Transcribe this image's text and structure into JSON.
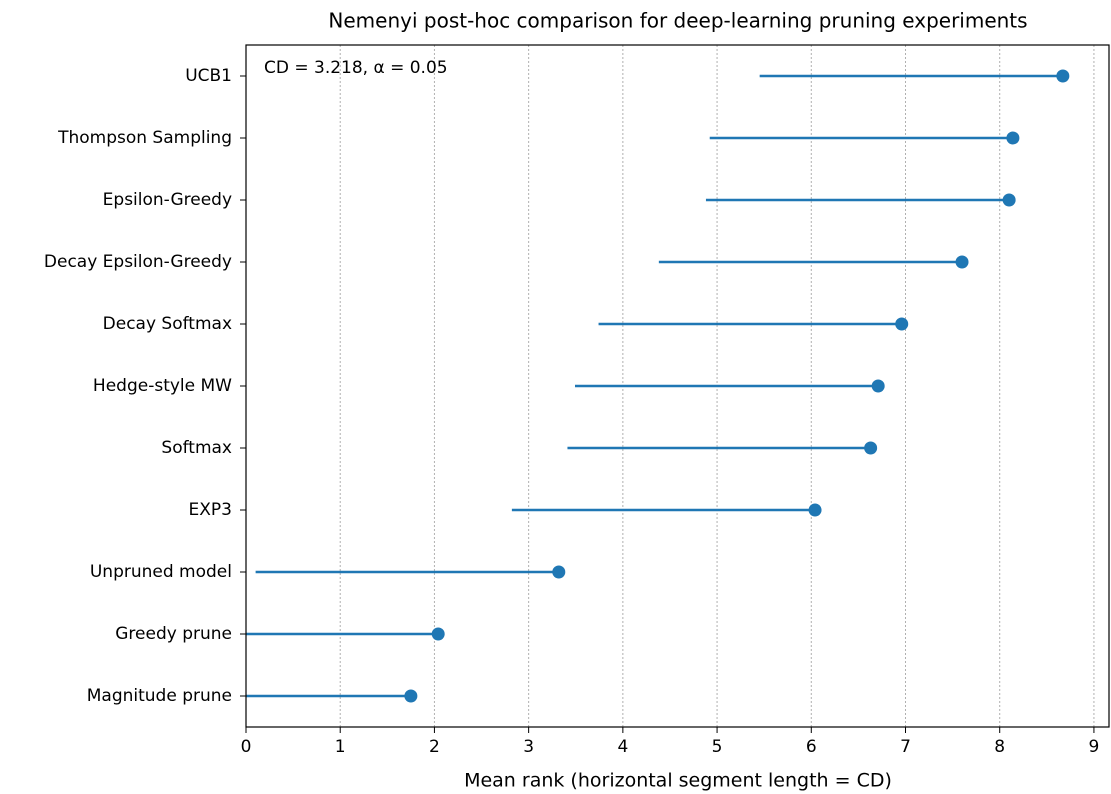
{
  "chart_data": {
    "type": "dot_interval",
    "title": "Nemenyi post-hoc comparison for deep-learning pruning experiments",
    "xlabel": "Mean rank (horizontal segment length = CD)",
    "annotation": "CD = 3.218, α = 0.05",
    "cd": 3.218,
    "categories": [
      "UCB1",
      "Thompson Sampling",
      "Epsilon-Greedy",
      "Decay Epsilon-Greedy",
      "Decay Softmax",
      "Hedge-style MW",
      "Softmax",
      "EXP3",
      "Unpruned model",
      "Greedy prune",
      "Magnitude prune"
    ],
    "series": [
      {
        "color": "#1f77b4",
        "values": [
          8.67,
          8.14,
          8.1,
          7.6,
          6.96,
          6.71,
          6.63,
          6.04,
          3.32,
          2.04,
          1.75
        ]
      }
    ],
    "xlim": [
      0,
      9.16
    ],
    "xticks": [
      0,
      1,
      2,
      3,
      4,
      5,
      6,
      7,
      8,
      9
    ],
    "grid": true
  }
}
